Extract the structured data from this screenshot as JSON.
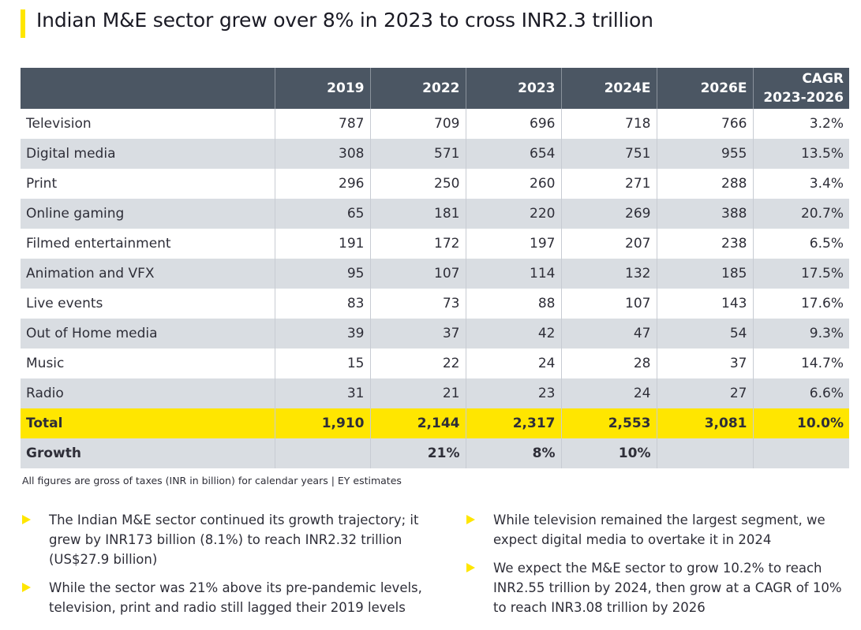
{
  "title": "Indian M&E sector grew over 8% in 2023 to cross INR2.3 trillion",
  "table": {
    "headers": [
      "",
      "2019",
      "2022",
      "2023",
      "2024E",
      "2026E",
      "CAGR\n2023-2026"
    ],
    "rows": [
      [
        "Television",
        "787",
        "709",
        "696",
        "718",
        "766",
        "3.2%"
      ],
      [
        "Digital media",
        "308",
        "571",
        "654",
        "751",
        "955",
        "13.5%"
      ],
      [
        "Print",
        "296",
        "250",
        "260",
        "271",
        "288",
        "3.4%"
      ],
      [
        "Online gaming",
        "65",
        "181",
        "220",
        "269",
        "388",
        "20.7%"
      ],
      [
        "Filmed entertainment",
        "191",
        "172",
        "197",
        "207",
        "238",
        "6.5%"
      ],
      [
        "Animation and VFX",
        "95",
        "107",
        "114",
        "132",
        "185",
        "17.5%"
      ],
      [
        "Live events",
        "83",
        "73",
        "88",
        "107",
        "143",
        "17.6%"
      ],
      [
        "Out of Home media",
        "39",
        "37",
        "42",
        "47",
        "54",
        "9.3%"
      ],
      [
        "Music",
        "15",
        "22",
        "24",
        "28",
        "37",
        "14.7%"
      ],
      [
        "Radio",
        "31",
        "21",
        "23",
        "24",
        "27",
        "6.6%"
      ]
    ],
    "total": [
      "Total",
      "1,910",
      "2,144",
      "2,317",
      "2,553",
      "3,081",
      "10.0%"
    ],
    "growth": [
      "Growth",
      "",
      "21%",
      "8%",
      "10%",
      "",
      ""
    ]
  },
  "footnote": "All figures are gross of taxes (INR in billion) for calendar years | EY estimates",
  "bullets_left": [
    "The Indian M&E sector continued its growth trajectory; it grew by INR173 billion (8.1%) to reach INR2.32 trillion (US$27.9 billion)",
    "While the sector was 21% above its pre-pandemic levels, television, print and radio still lagged their 2019 levels"
  ],
  "bullets_right": [
    "While television remained the largest segment, we expect digital media to overtake it in 2024",
    "We expect the M&E sector to grow 10.2% to reach INR2.55 trillion by 2024, then grow at a CAGR of 10% to reach INR3.08 trillion by 2026"
  ],
  "colors": {
    "accent_yellow": "#ffe600",
    "header_gray": "#4b5663",
    "row_alt_gray": "#d9dde2"
  }
}
